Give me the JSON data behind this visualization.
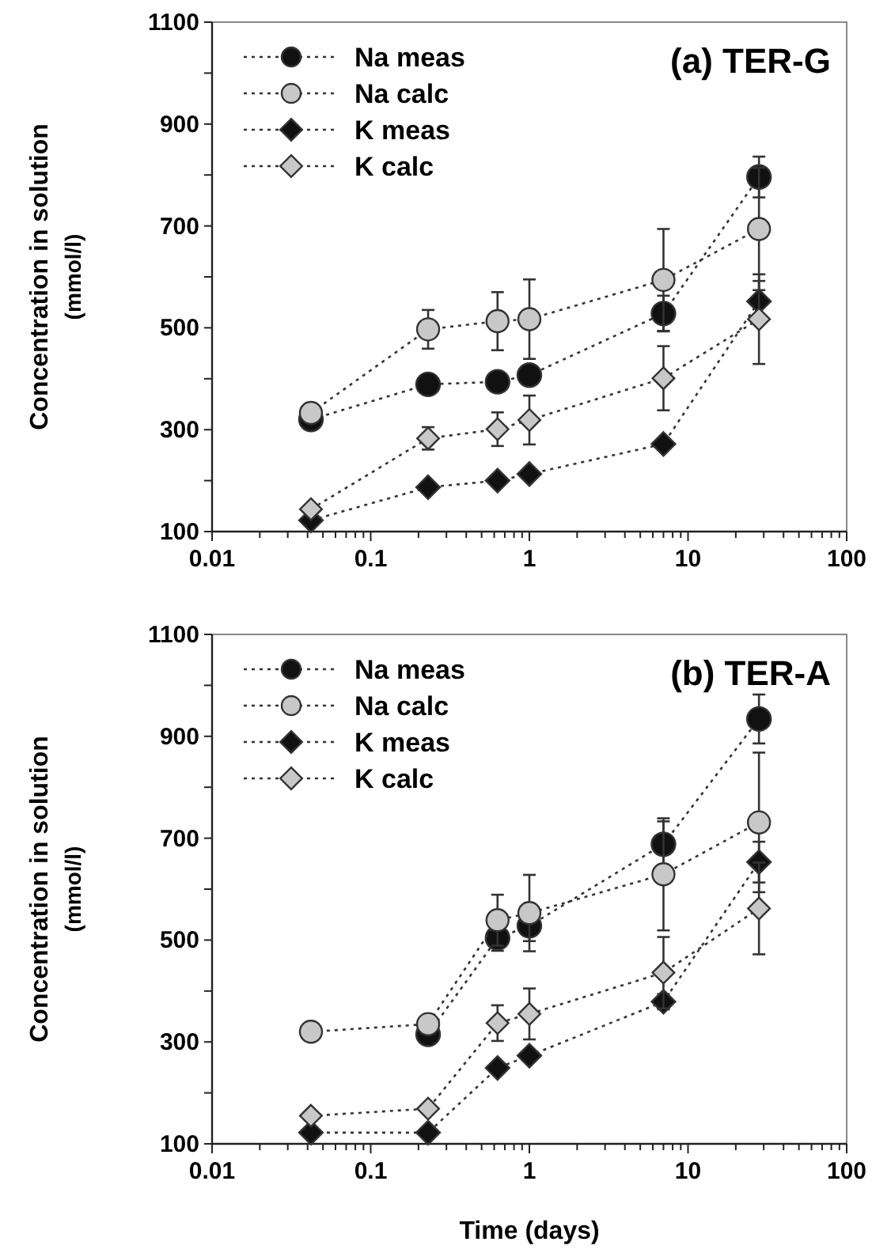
{
  "chart_data": [
    {
      "type": "line",
      "title": "(a) TER-G",
      "ylabel": "Concentration in solution\n(mmol/l)",
      "log": "x",
      "legend": "top left",
      "line_style": "dotted",
      "grid": false,
      "xlim": [
        0.01,
        100
      ],
      "ylim": [
        100,
        1100
      ],
      "xticks": [
        0.01,
        {
          "value": 0.02,
          "label": null
        },
        {
          "value": 0.03,
          "label": null
        },
        {
          "value": 0.04,
          "label": null
        },
        {
          "value": 0.05,
          "label": null
        },
        {
          "value": 0.06,
          "label": null
        },
        {
          "value": 0.07,
          "label": null
        },
        {
          "value": 0.08,
          "label": null
        },
        {
          "value": 0.09,
          "label": null
        },
        0.1,
        {
          "value": 0.2,
          "label": null
        },
        {
          "value": 0.3,
          "label": null
        },
        {
          "value": 0.4,
          "label": null
        },
        {
          "value": 0.5,
          "label": null
        },
        {
          "value": 0.6,
          "label": null
        },
        {
          "value": 0.7,
          "label": null
        },
        {
          "value": 0.8,
          "label": null
        },
        {
          "value": 0.9,
          "label": null
        },
        1,
        {
          "value": 2,
          "label": null
        },
        {
          "value": 3,
          "label": null
        },
        {
          "value": 4,
          "label": null
        },
        {
          "value": 5,
          "label": null
        },
        {
          "value": 6,
          "label": null
        },
        {
          "value": 7,
          "label": null
        },
        {
          "value": 8,
          "label": null
        },
        {
          "value": 9,
          "label": null
        },
        10,
        {
          "value": 20,
          "label": null
        },
        {
          "value": 30,
          "label": null
        },
        {
          "value": 40,
          "label": null
        },
        {
          "value": 50,
          "label": null
        },
        {
          "value": 60,
          "label": null
        },
        {
          "value": 70,
          "label": null
        },
        {
          "value": 80,
          "label": null
        },
        {
          "value": 90,
          "label": null
        },
        100
      ],
      "yticks": [
        100,
        {
          "value": 200,
          "label": null
        },
        300,
        {
          "value": 400,
          "label": null
        },
        500,
        {
          "value": 600,
          "label": null
        },
        700,
        {
          "value": 800,
          "label": null
        },
        900,
        {
          "value": 1000,
          "label": null
        },
        1100
      ],
      "x": [
        0.042,
        0.23,
        0.63,
        1,
        7,
        28
      ],
      "series": [
        {
          "name": "Na meas",
          "color": "#111111",
          "marker": "circle",
          "values": [
            320,
            389,
            394,
            407,
            528,
            796
          ],
          "errors": [
            10,
            18,
            15,
            15,
            35,
            40
          ]
        },
        {
          "name": "Na calc",
          "color": "#c8c8c8",
          "marker": "circle",
          "values": [
            333,
            497,
            513,
            517,
            594,
            694
          ],
          "errors": [
            null,
            38,
            57,
            78,
            100,
            120
          ]
        },
        {
          "name": "K meas",
          "color": "#111111",
          "marker": "diamond",
          "values": [
            122,
            187,
            200,
            213,
            272,
            552
          ],
          "errors": [
            null,
            null,
            null,
            null,
            null,
            40
          ]
        },
        {
          "name": "K calc",
          "color": "#c8c8c8",
          "marker": "diamond",
          "values": [
            144,
            283,
            301,
            319,
            401,
            517
          ],
          "errors": [
            null,
            22,
            33,
            48,
            63,
            88
          ]
        }
      ]
    },
    {
      "type": "line",
      "title": "(b) TER-A",
      "ylabel": "Concentration in solution\n(mmol/l)",
      "xlabel": "Time (days)",
      "log": "x",
      "legend": "top left",
      "line_style": "dotted",
      "grid": false,
      "xlim": [
        0.01,
        100
      ],
      "ylim": [
        100,
        1100
      ],
      "xticks": [
        0.01,
        {
          "value": 0.02,
          "label": null
        },
        {
          "value": 0.03,
          "label": null
        },
        {
          "value": 0.04,
          "label": null
        },
        {
          "value": 0.05,
          "label": null
        },
        {
          "value": 0.06,
          "label": null
        },
        {
          "value": 0.07,
          "label": null
        },
        {
          "value": 0.08,
          "label": null
        },
        {
          "value": 0.09,
          "label": null
        },
        0.1,
        {
          "value": 0.2,
          "label": null
        },
        {
          "value": 0.3,
          "label": null
        },
        {
          "value": 0.4,
          "label": null
        },
        {
          "value": 0.5,
          "label": null
        },
        {
          "value": 0.6,
          "label": null
        },
        {
          "value": 0.7,
          "label": null
        },
        {
          "value": 0.8,
          "label": null
        },
        {
          "value": 0.9,
          "label": null
        },
        1,
        {
          "value": 2,
          "label": null
        },
        {
          "value": 3,
          "label": null
        },
        {
          "value": 4,
          "label": null
        },
        {
          "value": 5,
          "label": null
        },
        {
          "value": 6,
          "label": null
        },
        {
          "value": 7,
          "label": null
        },
        {
          "value": 8,
          "label": null
        },
        {
          "value": 9,
          "label": null
        },
        10,
        {
          "value": 20,
          "label": null
        },
        {
          "value": 30,
          "label": null
        },
        {
          "value": 40,
          "label": null
        },
        {
          "value": 50,
          "label": null
        },
        {
          "value": 60,
          "label": null
        },
        {
          "value": 70,
          "label": null
        },
        {
          "value": 80,
          "label": null
        },
        {
          "value": 90,
          "label": null
        },
        100
      ],
      "yticks": [
        100,
        {
          "value": 200,
          "label": null
        },
        300,
        {
          "value": 400,
          "label": null
        },
        500,
        {
          "value": 600,
          "label": null
        },
        700,
        {
          "value": 800,
          "label": null
        },
        900,
        {
          "value": 1000,
          "label": null
        },
        1100
      ],
      "x": [
        0.042,
        0.23,
        0.63,
        1,
        7,
        28
      ],
      "series": [
        {
          "name": "Na meas",
          "color": "#111111",
          "marker": "circle",
          "values": [
            null,
            315,
            504,
            528,
            688,
            934
          ],
          "errors": [
            null,
            null,
            25,
            30,
            45,
            48
          ]
        },
        {
          "name": "Na calc",
          "color": "#c8c8c8",
          "marker": "circle",
          "values": [
            320,
            335,
            539,
            553,
            629,
            731
          ],
          "errors": [
            null,
            null,
            50,
            75,
            110,
            137
          ]
        },
        {
          "name": "K meas",
          "color": "#111111",
          "marker": "diamond",
          "values": [
            122,
            122,
            249,
            273,
            379,
            653
          ],
          "errors": [
            null,
            null,
            null,
            null,
            15,
            40
          ]
        },
        {
          "name": "K calc",
          "color": "#c8c8c8",
          "marker": "diamond",
          "values": [
            155,
            169,
            337,
            355,
            436,
            562
          ],
          "errors": [
            null,
            null,
            35,
            50,
            70,
            90
          ]
        }
      ]
    }
  ]
}
